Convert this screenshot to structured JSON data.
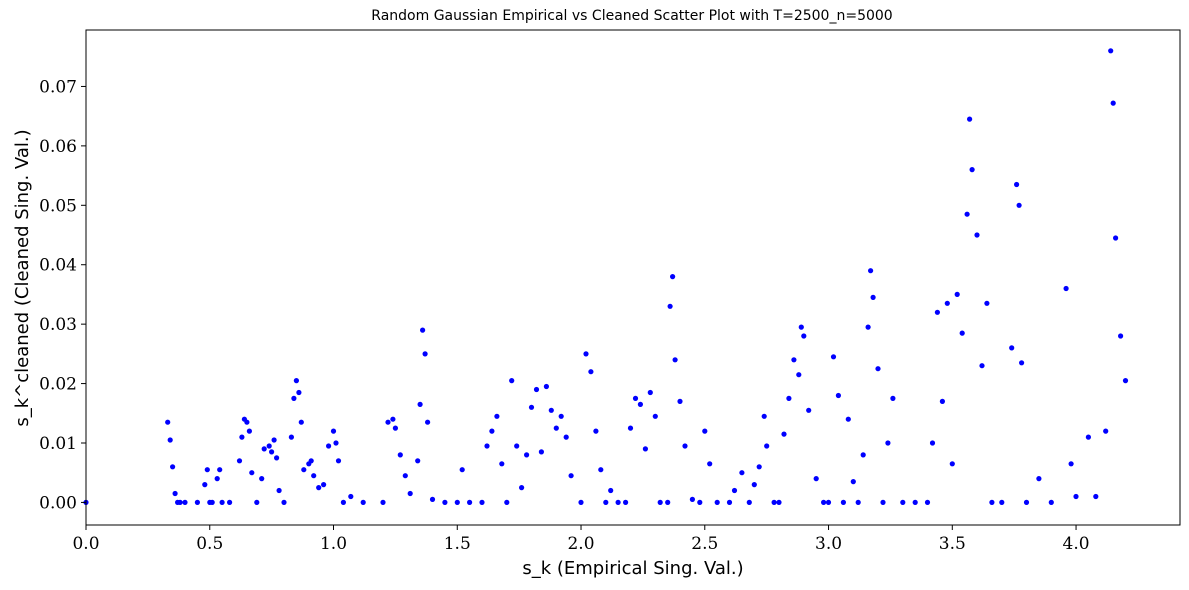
{
  "chart_data": {
    "type": "scatter",
    "title": "Random Gaussian Empirical vs Cleaned Scatter Plot with T=2500_n=5000",
    "xlabel": "s_k (Empirical Sing. Val.)",
    "ylabel": "s_k^cleaned (Cleaned Sing. Val.)",
    "xlim": [
      0.0,
      4.42
    ],
    "ylim": [
      -0.0038,
      0.0795
    ],
    "xticks": [
      0.0,
      0.5,
      1.0,
      1.5,
      2.0,
      2.5,
      3.0,
      3.5,
      4.0
    ],
    "xtick_labels": [
      "0.0",
      "0.5",
      "1.0",
      "1.5",
      "2.0",
      "2.5",
      "3.0",
      "3.5",
      "4.0"
    ],
    "yticks": [
      0.0,
      0.01,
      0.02,
      0.03,
      0.04,
      0.05,
      0.06,
      0.07
    ],
    "ytick_labels": [
      "0.00",
      "0.01",
      "0.02",
      "0.03",
      "0.04",
      "0.05",
      "0.06",
      "0.07"
    ],
    "grid": false,
    "marker_color": "#0000ff",
    "x": [
      0.0,
      0.33,
      0.34,
      0.35,
      0.36,
      0.37,
      0.38,
      0.4,
      0.45,
      0.48,
      0.49,
      0.5,
      0.51,
      0.53,
      0.54,
      0.55,
      0.58,
      0.62,
      0.63,
      0.64,
      0.65,
      0.66,
      0.67,
      0.69,
      0.71,
      0.72,
      0.74,
      0.75,
      0.76,
      0.77,
      0.78,
      0.8,
      0.83,
      0.84,
      0.85,
      0.86,
      0.87,
      0.88,
      0.9,
      0.91,
      0.92,
      0.94,
      0.96,
      0.98,
      1.0,
      1.01,
      1.02,
      1.04,
      1.07,
      1.12,
      1.2,
      1.22,
      1.24,
      1.25,
      1.27,
      1.29,
      1.31,
      1.34,
      1.35,
      1.36,
      1.37,
      1.38,
      1.4,
      1.45,
      1.5,
      1.52,
      1.55,
      1.6,
      1.62,
      1.64,
      1.66,
      1.68,
      1.7,
      1.72,
      1.74,
      1.76,
      1.78,
      1.8,
      1.82,
      1.84,
      1.86,
      1.88,
      1.9,
      1.92,
      1.94,
      1.96,
      2.0,
      2.02,
      2.04,
      2.06,
      2.08,
      2.1,
      2.12,
      2.15,
      2.18,
      2.2,
      2.22,
      2.24,
      2.26,
      2.28,
      2.3,
      2.32,
      2.35,
      2.36,
      2.37,
      2.38,
      2.4,
      2.42,
      2.45,
      2.48,
      2.5,
      2.52,
      2.55,
      2.6,
      2.62,
      2.65,
      2.68,
      2.7,
      2.72,
      2.74,
      2.75,
      2.78,
      2.8,
      2.82,
      2.84,
      2.86,
      2.88,
      2.89,
      2.9,
      2.92,
      2.95,
      2.98,
      3.0,
      3.02,
      3.04,
      3.06,
      3.08,
      3.1,
      3.12,
      3.14,
      3.16,
      3.17,
      3.18,
      3.2,
      3.22,
      3.24,
      3.26,
      3.3,
      3.35,
      3.4,
      3.42,
      3.44,
      3.46,
      3.48,
      3.5,
      3.52,
      3.54,
      3.56,
      3.57,
      3.58,
      3.6,
      3.62,
      3.64,
      3.66,
      3.7,
      3.74,
      3.76,
      3.77,
      3.78,
      3.8,
      3.85,
      3.9,
      3.96,
      3.98,
      4.0,
      4.05,
      4.08,
      4.12,
      4.14,
      4.15,
      4.16,
      4.18,
      4.2
    ],
    "y": [
      0.0,
      0.0135,
      0.0105,
      0.006,
      0.0015,
      0.0,
      0.0,
      0.0,
      0.0,
      0.003,
      0.0055,
      0.0,
      0.0,
      0.004,
      0.0055,
      0.0,
      0.0,
      0.007,
      0.011,
      0.014,
      0.0135,
      0.012,
      0.005,
      0.0,
      0.004,
      0.009,
      0.0095,
      0.0085,
      0.0105,
      0.0075,
      0.002,
      0.0,
      0.011,
      0.0175,
      0.0205,
      0.0185,
      0.0135,
      0.0055,
      0.0065,
      0.007,
      0.0045,
      0.0025,
      0.003,
      0.0095,
      0.012,
      0.01,
      0.007,
      0.0,
      0.001,
      0.0,
      0.0,
      0.0135,
      0.014,
      0.0125,
      0.008,
      0.0045,
      0.0015,
      0.007,
      0.0165,
      0.029,
      0.025,
      0.0135,
      0.0005,
      0.0,
      0.0,
      0.0055,
      0.0,
      0.0,
      0.0095,
      0.012,
      0.0145,
      0.0065,
      0.0,
      0.0205,
      0.0095,
      0.0025,
      0.008,
      0.016,
      0.019,
      0.0085,
      0.0195,
      0.0155,
      0.0125,
      0.0145,
      0.011,
      0.0045,
      0.0,
      0.025,
      0.022,
      0.012,
      0.0055,
      0.0,
      0.002,
      0.0,
      0.0,
      0.0125,
      0.0175,
      0.0165,
      0.009,
      0.0185,
      0.0145,
      0.0,
      0.0,
      0.033,
      0.038,
      0.024,
      0.017,
      0.0095,
      0.0005,
      0.0,
      0.012,
      0.0065,
      0.0,
      0.0,
      0.002,
      0.005,
      0.0,
      0.003,
      0.006,
      0.0145,
      0.0095,
      0.0,
      0.0,
      0.0115,
      0.0175,
      0.024,
      0.0215,
      0.0295,
      0.028,
      0.0155,
      0.004,
      0.0,
      0.0,
      0.0245,
      0.018,
      0.0,
      0.014,
      0.0035,
      0.0,
      0.008,
      0.0295,
      0.039,
      0.0345,
      0.0225,
      0.0,
      0.01,
      0.0175,
      0.0,
      0.0,
      0.0,
      0.01,
      0.032,
      0.017,
      0.0335,
      0.0065,
      0.035,
      0.0285,
      0.0485,
      0.0645,
      0.056,
      0.045,
      0.023,
      0.0335,
      0.0,
      0.0,
      0.026,
      0.0535,
      0.05,
      0.0235,
      0.0,
      0.004,
      0.0,
      0.036,
      0.0065,
      0.001,
      0.011,
      0.001,
      0.012,
      0.076,
      0.0672,
      0.0445,
      0.028,
      0.0205
    ]
  }
}
